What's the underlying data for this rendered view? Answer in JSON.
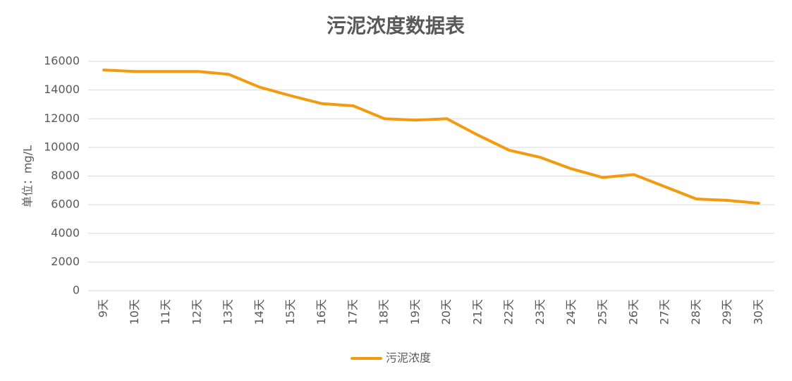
{
  "chart_data": {
    "type": "line",
    "title": "污泥浓度数据表",
    "ylabel": "单位：mg/L",
    "categories": [
      "9天",
      "10天",
      "11天",
      "12天",
      "13天",
      "14天",
      "15天",
      "16天",
      "17天",
      "18天",
      "19天",
      "20天",
      "21天",
      "22天",
      "23天",
      "24天",
      "25天",
      "26天",
      "27天",
      "28天",
      "29天",
      "30天"
    ],
    "series": [
      {
        "name": "污泥浓度",
        "color": "#f39a0e",
        "values": [
          15400,
          15300,
          15300,
          15300,
          15100,
          14200,
          13600,
          13050,
          12900,
          12000,
          11900,
          12000,
          10850,
          9800,
          9300,
          8500,
          7900,
          8100,
          7250,
          6400,
          6300,
          6100
        ]
      }
    ],
    "ylim": [
      0,
      16000
    ],
    "yticks": [
      0,
      2000,
      4000,
      6000,
      8000,
      10000,
      12000,
      14000,
      16000
    ],
    "grid": true,
    "legend": "bottom"
  }
}
